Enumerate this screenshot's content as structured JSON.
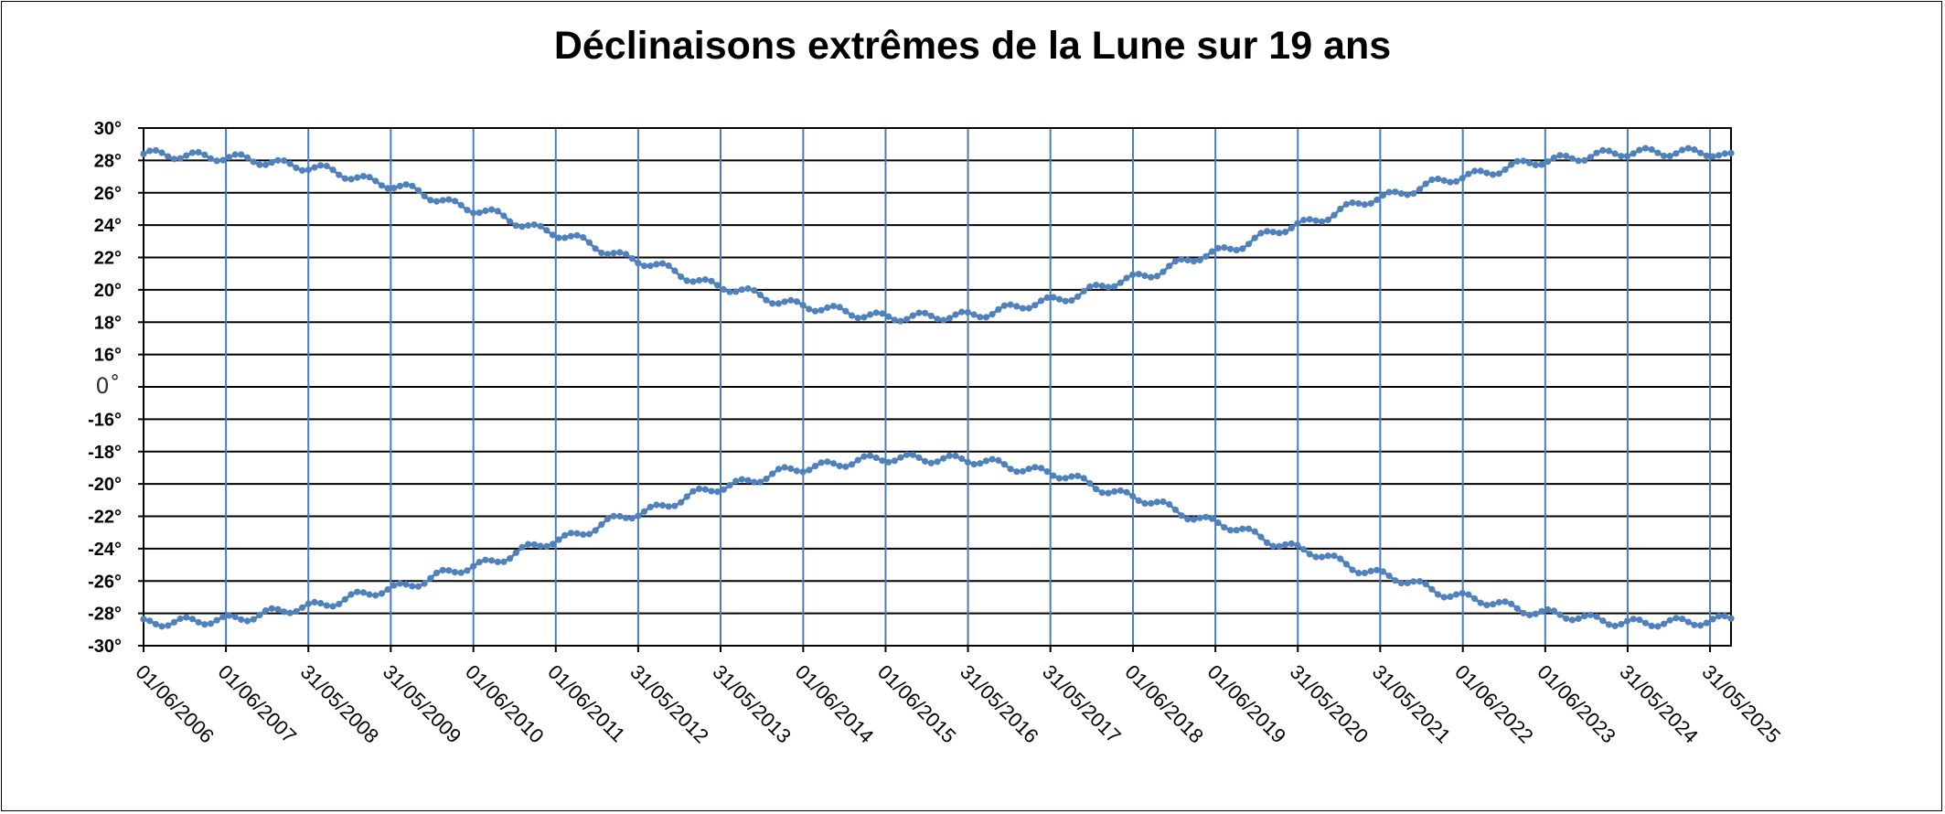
{
  "chart_data": {
    "type": "line",
    "title": "Déclinaisons extrêmes de la Lune sur 19 ans",
    "xlabel": "",
    "ylabel": "",
    "marker": "dot",
    "color": "#4f81bd",
    "grid": true,
    "legend": "none",
    "x_ticks": [
      "01/06/2006",
      "01/06/2007",
      "31/05/2008",
      "31/05/2009",
      "01/06/2010",
      "01/06/2011",
      "31/05/2012",
      "31/05/2013",
      "01/06/2014",
      "01/06/2015",
      "31/05/2016",
      "31/05/2017",
      "01/06/2018",
      "01/06/2019",
      "31/05/2020",
      "31/05/2021",
      "01/06/2022",
      "01/06/2023",
      "31/05/2024",
      "31/05/2025"
    ],
    "x_range": [
      "01/06/2006",
      "01/09/2025"
    ],
    "y_ticks": [
      "30°",
      "28°",
      "26°",
      "24°",
      "22°",
      "20°",
      "18°",
      "16°",
      "0˚",
      "-16°",
      "-18°",
      "-20°",
      "-22°",
      "-24°",
      "-26°",
      "-28°",
      "-30°"
    ],
    "y_note": "axis is compressed between 16° and -16° (a single band labelled 0˚)",
    "series": [
      {
        "x": [
          "01/06/2006",
          "01/06/2007",
          "31/05/2008",
          "31/05/2009",
          "01/06/2010",
          "01/06/2011",
          "31/05/2012",
          "31/05/2013",
          "01/06/2014",
          "01/06/2015",
          "31/05/2016",
          "31/05/2017",
          "01/06/2018",
          "01/06/2019",
          "31/05/2020",
          "31/05/2021",
          "01/06/2022",
          "01/06/2023",
          "31/05/2024",
          "31/05/2025",
          "01/09/2025"
        ],
        "y": [
          28.4,
          28.2,
          27.6,
          26.5,
          25.0,
          23.5,
          21.8,
          20.2,
          19.0,
          18.3,
          18.4,
          19.3,
          20.7,
          22.3,
          24.0,
          25.7,
          27.0,
          28.0,
          28.5,
          28.5,
          28.2
        ]
      },
      {
        "x": [
          "01/06/2006",
          "01/06/2007",
          "31/05/2008",
          "31/05/2009",
          "01/06/2010",
          "01/06/2011",
          "31/05/2012",
          "31/05/2013",
          "01/06/2014",
          "01/06/2015",
          "31/05/2016",
          "31/05/2017",
          "01/06/2018",
          "01/06/2019",
          "31/05/2020",
          "31/05/2021",
          "01/06/2022",
          "01/06/2023",
          "31/05/2024",
          "31/05/2025",
          "01/09/2025"
        ],
        "y": [
          -28.6,
          -28.4,
          -27.6,
          -26.5,
          -25.1,
          -23.5,
          -21.8,
          -20.2,
          -19.0,
          -18.4,
          -18.5,
          -19.3,
          -20.8,
          -22.4,
          -24.0,
          -25.6,
          -27.0,
          -28.0,
          -28.6,
          -28.5,
          -28.3
        ]
      }
    ]
  }
}
